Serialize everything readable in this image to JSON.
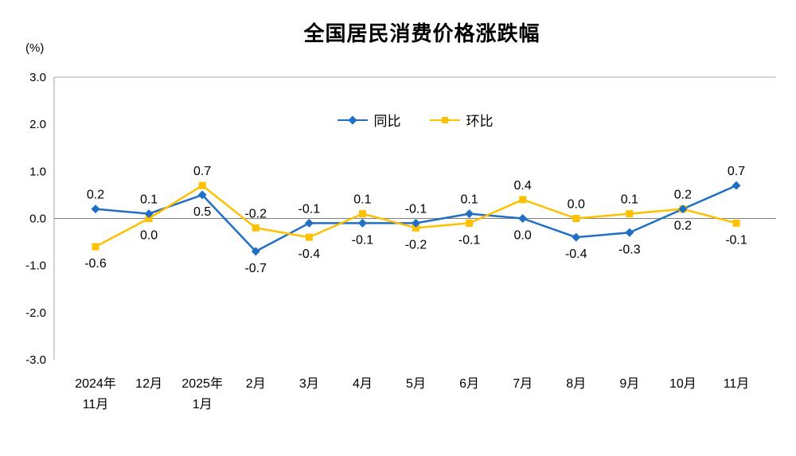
{
  "chart_data": {
    "type": "line",
    "title": "全国居民消费价格涨跌幅",
    "y_unit": "(%)",
    "categories": [
      "2024年\n11月",
      "12月",
      "2025年\n1月",
      "2月",
      "3月",
      "4月",
      "5月",
      "6月",
      "7月",
      "8月",
      "9月",
      "10月",
      "11月"
    ],
    "series": [
      {
        "name": "同比",
        "color": "#1F6FC5",
        "marker": "diamond",
        "values": [
          0.2,
          0.1,
          0.5,
          -0.7,
          -0.1,
          -0.1,
          -0.1,
          0.1,
          0.0,
          -0.4,
          -0.3,
          0.2,
          0.7
        ]
      },
      {
        "name": "环比",
        "color": "#FFC000",
        "marker": "square",
        "values": [
          -0.6,
          0.0,
          0.7,
          -0.2,
          -0.4,
          0.1,
          -0.2,
          -0.1,
          0.4,
          0.0,
          0.1,
          0.2,
          -0.1
        ]
      }
    ],
    "ylim": [
      -3.0,
      3.0
    ],
    "ytick_step": 1.0,
    "yticks": [
      "3.0",
      "2.0",
      "1.0",
      "0.0",
      "-1.0",
      "-2.0",
      "-3.0"
    ],
    "grid": "top-border-and-zero-line",
    "grid_color": "#A6A6A6",
    "zero_line_color": "#7F7F7F",
    "legend_position": "top-center-inside",
    "data_labels": "on"
  }
}
